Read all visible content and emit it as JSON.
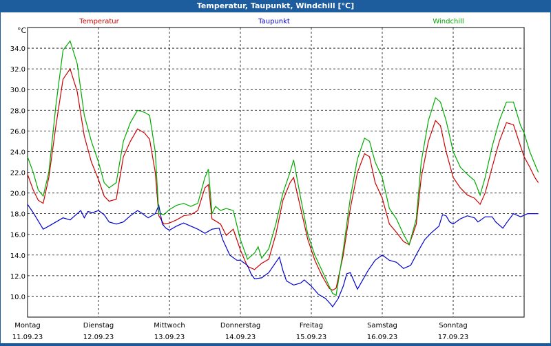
{
  "window_title": "Temperatur, Taupunkt, Windchill [°C]",
  "colors": {
    "temperatur": "#cc0000",
    "taupunkt": "#0000cc",
    "windchill": "#00aa00",
    "titlebar": "#1d5d9e"
  },
  "chart_data": {
    "type": "line",
    "title": "Temperatur, Taupunkt, Windchill [°C]",
    "ylabel": "°C",
    "ylim": [
      8.0,
      36.0
    ],
    "xlim": [
      0,
      7
    ],
    "yticks": [
      "10.0",
      "12.0",
      "14.0",
      "16.0",
      "18.0",
      "20.0",
      "22.0",
      "24.0",
      "26.0",
      "28.0",
      "30.0",
      "32.0",
      "34.0"
    ],
    "grid": true,
    "legend_position": "top",
    "x_labels": [
      {
        "day": "Montag",
        "date": "11.09.23"
      },
      {
        "day": "Dienstag",
        "date": "12.09.23"
      },
      {
        "day": "Mittwoch",
        "date": "13.09.23"
      },
      {
        "day": "Donnerstag",
        "date": "14.09.23"
      },
      {
        "day": "Freitag",
        "date": "15.09.23"
      },
      {
        "day": "Samstag",
        "date": "16.09.23"
      },
      {
        "day": "Sonntag",
        "date": "17.09.23"
      }
    ],
    "series": [
      {
        "name": "Temperatur",
        "key": "temperatur",
        "points": [
          [
            0,
            21.8
          ],
          [
            0.08,
            20.3
          ],
          [
            0.15,
            19.3
          ],
          [
            0.22,
            19.0
          ],
          [
            0.3,
            21.5
          ],
          [
            0.4,
            26.5
          ],
          [
            0.5,
            31.0
          ],
          [
            0.6,
            32.0
          ],
          [
            0.7,
            29.8
          ],
          [
            0.8,
            25.5
          ],
          [
            0.9,
            23.0
          ],
          [
            1.0,
            21.3
          ],
          [
            1.08,
            19.7
          ],
          [
            1.15,
            19.2
          ],
          [
            1.25,
            19.4
          ],
          [
            1.35,
            23.5
          ],
          [
            1.45,
            25.0
          ],
          [
            1.55,
            26.2
          ],
          [
            1.65,
            25.8
          ],
          [
            1.72,
            25.2
          ],
          [
            1.8,
            22.0
          ],
          [
            1.85,
            17.8
          ],
          [
            1.92,
            17.0
          ],
          [
            2.0,
            17.1
          ],
          [
            2.1,
            17.4
          ],
          [
            2.2,
            17.8
          ],
          [
            2.3,
            17.9
          ],
          [
            2.4,
            18.3
          ],
          [
            2.5,
            20.5
          ],
          [
            2.55,
            20.8
          ],
          [
            2.6,
            17.5
          ],
          [
            2.65,
            17.3
          ],
          [
            2.72,
            17.0
          ],
          [
            2.8,
            15.9
          ],
          [
            2.9,
            16.5
          ],
          [
            3.0,
            14.5
          ],
          [
            3.1,
            12.9
          ],
          [
            3.2,
            12.6
          ],
          [
            3.3,
            13.2
          ],
          [
            3.4,
            13.6
          ],
          [
            3.5,
            16.0
          ],
          [
            3.6,
            19.3
          ],
          [
            3.7,
            21.0
          ],
          [
            3.75,
            21.5
          ],
          [
            3.85,
            18.5
          ],
          [
            3.95,
            15.5
          ],
          [
            4.05,
            13.5
          ],
          [
            4.15,
            12.0
          ],
          [
            4.25,
            10.8
          ],
          [
            4.3,
            10.6
          ],
          [
            4.35,
            10.8
          ],
          [
            4.45,
            14.0
          ],
          [
            4.55,
            18.5
          ],
          [
            4.65,
            22.0
          ],
          [
            4.75,
            23.8
          ],
          [
            4.82,
            23.5
          ],
          [
            4.9,
            21.0
          ],
          [
            5.0,
            19.5
          ],
          [
            5.1,
            17.0
          ],
          [
            5.2,
            16.2
          ],
          [
            5.3,
            15.3
          ],
          [
            5.38,
            15.0
          ],
          [
            5.48,
            17.0
          ],
          [
            5.55,
            21.5
          ],
          [
            5.65,
            25.0
          ],
          [
            5.75,
            27.0
          ],
          [
            5.82,
            26.5
          ],
          [
            5.9,
            24.0
          ],
          [
            6.0,
            21.5
          ],
          [
            6.1,
            20.5
          ],
          [
            6.2,
            19.8
          ],
          [
            6.3,
            19.5
          ],
          [
            6.38,
            18.9
          ],
          [
            6.45,
            20.0
          ],
          [
            6.55,
            22.5
          ],
          [
            6.65,
            25.0
          ],
          [
            6.75,
            26.8
          ],
          [
            6.85,
            26.6
          ],
          [
            6.95,
            24.5
          ],
          [
            7.0,
            23.5
          ],
          [
            7.08,
            22.5
          ],
          [
            7.15,
            21.5
          ],
          [
            7.2,
            21.0
          ]
        ]
      },
      {
        "name": "Taupunkt",
        "key": "taupunkt",
        "points": [
          [
            0,
            18.9
          ],
          [
            0.08,
            18.1
          ],
          [
            0.15,
            17.3
          ],
          [
            0.22,
            16.5
          ],
          [
            0.3,
            16.8
          ],
          [
            0.4,
            17.2
          ],
          [
            0.5,
            17.6
          ],
          [
            0.6,
            17.4
          ],
          [
            0.7,
            18.0
          ],
          [
            0.75,
            18.3
          ],
          [
            0.8,
            17.6
          ],
          [
            0.85,
            18.2
          ],
          [
            0.92,
            18.1
          ],
          [
            1.0,
            18.3
          ],
          [
            1.08,
            17.9
          ],
          [
            1.15,
            17.2
          ],
          [
            1.25,
            17.0
          ],
          [
            1.35,
            17.2
          ],
          [
            1.45,
            17.8
          ],
          [
            1.55,
            18.3
          ],
          [
            1.6,
            18.1
          ],
          [
            1.7,
            17.6
          ],
          [
            1.8,
            18.0
          ],
          [
            1.85,
            18.8
          ],
          [
            1.9,
            17.0
          ],
          [
            1.95,
            16.6
          ],
          [
            2.0,
            16.4
          ],
          [
            2.1,
            16.8
          ],
          [
            2.2,
            17.1
          ],
          [
            2.3,
            16.8
          ],
          [
            2.4,
            16.5
          ],
          [
            2.5,
            16.1
          ],
          [
            2.6,
            16.5
          ],
          [
            2.7,
            16.6
          ],
          [
            2.75,
            15.5
          ],
          [
            2.85,
            14.0
          ],
          [
            2.95,
            13.5
          ],
          [
            3.0,
            13.5
          ],
          [
            3.1,
            13.0
          ],
          [
            3.15,
            12.2
          ],
          [
            3.2,
            11.7
          ],
          [
            3.3,
            11.8
          ],
          [
            3.4,
            12.3
          ],
          [
            3.5,
            13.3
          ],
          [
            3.55,
            13.8
          ],
          [
            3.6,
            12.5
          ],
          [
            3.65,
            11.5
          ],
          [
            3.75,
            11.1
          ],
          [
            3.85,
            11.3
          ],
          [
            3.9,
            11.6
          ],
          [
            4.0,
            11.0
          ],
          [
            4.1,
            10.2
          ],
          [
            4.2,
            9.8
          ],
          [
            4.28,
            9.2
          ],
          [
            4.3,
            9.0
          ],
          [
            4.38,
            9.8
          ],
          [
            4.45,
            11.0
          ],
          [
            4.5,
            12.2
          ],
          [
            4.55,
            12.3
          ],
          [
            4.6,
            11.5
          ],
          [
            4.65,
            10.7
          ],
          [
            4.7,
            11.3
          ],
          [
            4.8,
            12.5
          ],
          [
            4.9,
            13.5
          ],
          [
            5.0,
            14.0
          ],
          [
            5.1,
            13.5
          ],
          [
            5.2,
            13.3
          ],
          [
            5.25,
            13.0
          ],
          [
            5.3,
            12.7
          ],
          [
            5.4,
            13.0
          ],
          [
            5.5,
            14.3
          ],
          [
            5.6,
            15.5
          ],
          [
            5.7,
            16.2
          ],
          [
            5.8,
            16.8
          ],
          [
            5.85,
            17.9
          ],
          [
            5.9,
            17.8
          ],
          [
            5.95,
            17.2
          ],
          [
            6.0,
            17.0
          ],
          [
            6.1,
            17.5
          ],
          [
            6.2,
            17.8
          ],
          [
            6.3,
            17.6
          ],
          [
            6.35,
            17.2
          ],
          [
            6.45,
            17.7
          ],
          [
            6.55,
            17.7
          ],
          [
            6.6,
            17.2
          ],
          [
            6.7,
            16.6
          ],
          [
            6.75,
            17.1
          ],
          [
            6.85,
            18.0
          ],
          [
            6.95,
            17.7
          ],
          [
            7.05,
            18.0
          ],
          [
            7.2,
            18.0
          ]
        ]
      },
      {
        "name": "Windchill",
        "key": "windchill",
        "points": [
          [
            0,
            23.5
          ],
          [
            0.08,
            22.0
          ],
          [
            0.15,
            20.3
          ],
          [
            0.22,
            19.7
          ],
          [
            0.3,
            22.0
          ],
          [
            0.4,
            28.5
          ],
          [
            0.5,
            33.8
          ],
          [
            0.6,
            34.7
          ],
          [
            0.7,
            32.5
          ],
          [
            0.8,
            27.5
          ],
          [
            0.9,
            25.0
          ],
          [
            1.0,
            23.0
          ],
          [
            1.08,
            21.0
          ],
          [
            1.15,
            20.5
          ],
          [
            1.25,
            21.0
          ],
          [
            1.35,
            25.0
          ],
          [
            1.45,
            26.8
          ],
          [
            1.55,
            28.0
          ],
          [
            1.65,
            27.8
          ],
          [
            1.72,
            27.5
          ],
          [
            1.8,
            24.0
          ],
          [
            1.85,
            18.0
          ],
          [
            1.92,
            17.9
          ],
          [
            2.0,
            18.4
          ],
          [
            2.1,
            18.8
          ],
          [
            2.2,
            19.0
          ],
          [
            2.3,
            18.7
          ],
          [
            2.4,
            19.0
          ],
          [
            2.5,
            21.5
          ],
          [
            2.55,
            22.3
          ],
          [
            2.6,
            18.0
          ],
          [
            2.65,
            18.7
          ],
          [
            2.72,
            18.3
          ],
          [
            2.8,
            18.5
          ],
          [
            2.9,
            18.3
          ],
          [
            3.0,
            15.5
          ],
          [
            3.1,
            13.6
          ],
          [
            3.2,
            14.2
          ],
          [
            3.25,
            14.8
          ],
          [
            3.3,
            13.7
          ],
          [
            3.4,
            14.6
          ],
          [
            3.5,
            17.0
          ],
          [
            3.6,
            20.0
          ],
          [
            3.7,
            22.0
          ],
          [
            3.75,
            23.2
          ],
          [
            3.85,
            19.5
          ],
          [
            3.95,
            16.0
          ],
          [
            4.05,
            14.0
          ],
          [
            4.15,
            12.5
          ],
          [
            4.25,
            11.0
          ],
          [
            4.3,
            10.3
          ],
          [
            4.35,
            10.1
          ],
          [
            4.45,
            14.5
          ],
          [
            4.55,
            19.5
          ],
          [
            4.65,
            23.3
          ],
          [
            4.75,
            25.3
          ],
          [
            4.82,
            25.0
          ],
          [
            4.9,
            23.0
          ],
          [
            5.0,
            21.5
          ],
          [
            5.1,
            18.5
          ],
          [
            5.2,
            17.5
          ],
          [
            5.3,
            16.0
          ],
          [
            5.38,
            15.0
          ],
          [
            5.48,
            17.5
          ],
          [
            5.55,
            23.0
          ],
          [
            5.65,
            27.0
          ],
          [
            5.75,
            29.2
          ],
          [
            5.82,
            28.8
          ],
          [
            5.9,
            27.0
          ],
          [
            6.0,
            24.0
          ],
          [
            6.1,
            22.5
          ],
          [
            6.2,
            21.8
          ],
          [
            6.3,
            21.2
          ],
          [
            6.38,
            19.8
          ],
          [
            6.45,
            21.5
          ],
          [
            6.55,
            24.5
          ],
          [
            6.65,
            27.0
          ],
          [
            6.75,
            28.8
          ],
          [
            6.85,
            28.8
          ],
          [
            6.95,
            26.5
          ],
          [
            7.0,
            25.8
          ],
          [
            7.08,
            24.0
          ],
          [
            7.15,
            22.8
          ],
          [
            7.2,
            22.0
          ]
        ]
      }
    ]
  }
}
